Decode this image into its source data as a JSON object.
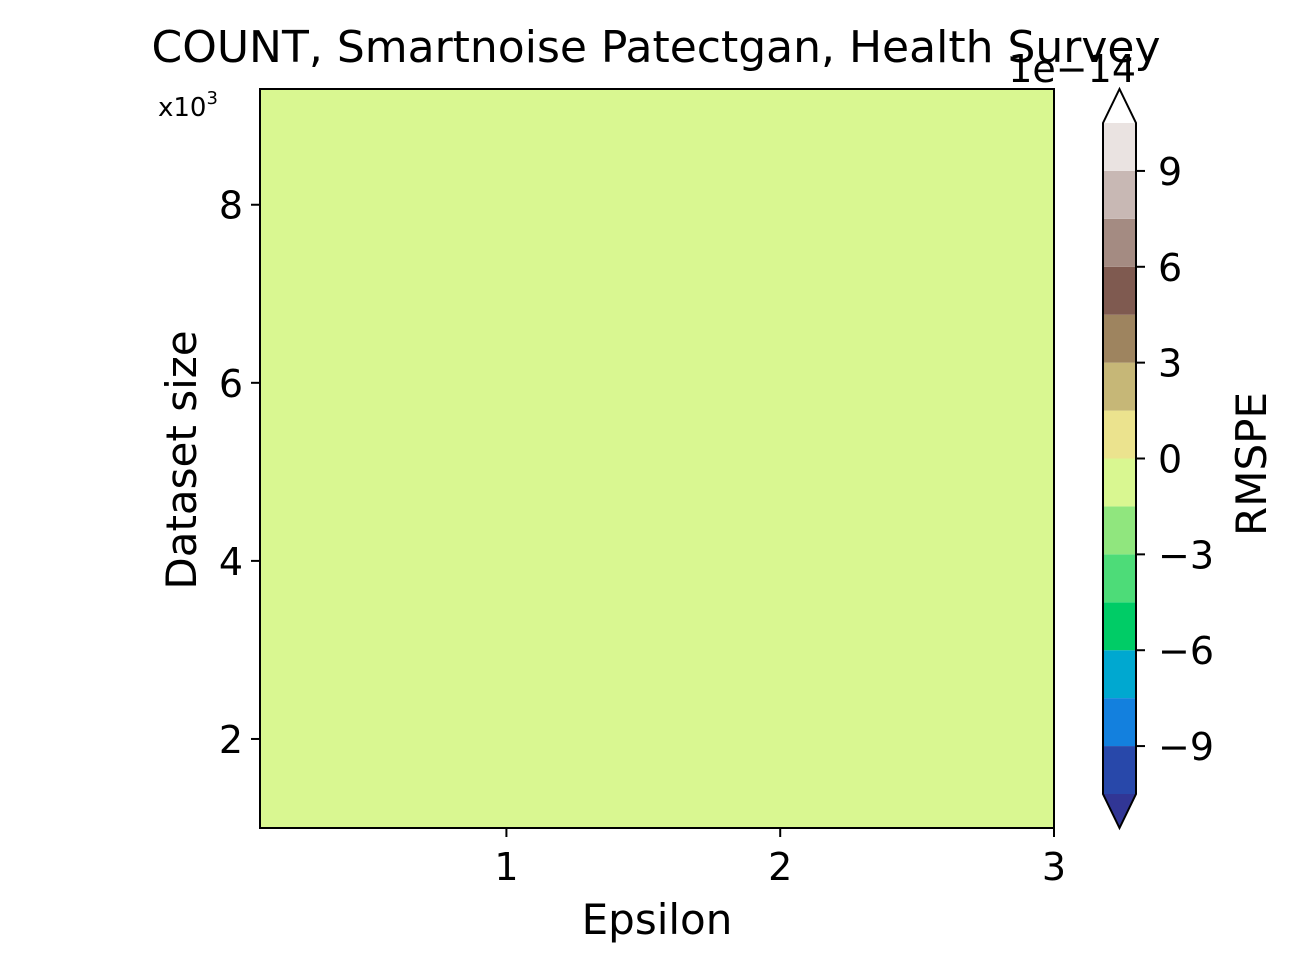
{
  "chart_data": {
    "type": "heatmap",
    "title": "COUNT, Smartnoise Patectgan, Health Survey",
    "xlabel": "Epsilon",
    "ylabel": "Dataset size",
    "y_multiplier_label": "x10",
    "y_multiplier_exponent": "3",
    "xlim": [
      0.1,
      3.0
    ],
    "ylim": [
      1.0,
      9.3
    ],
    "x_ticks": [
      1,
      2,
      3
    ],
    "x_tick_labels": [
      "1",
      "2",
      "3"
    ],
    "y_ticks": [
      2,
      4,
      6,
      8
    ],
    "y_tick_labels": [
      "2",
      "4",
      "6",
      "8"
    ],
    "field_value": 0,
    "field_color": "#d9f791",
    "colorbar": {
      "label": "RMSPE",
      "offset_label": "1e−14",
      "extend": "both",
      "levels": [
        -10.5,
        -9,
        -7.5,
        -6,
        -4.5,
        -3,
        -1.5,
        0,
        1.5,
        3,
        4.5,
        6,
        7.5,
        9,
        10.5
      ],
      "colors": [
        "#2848aa",
        "#1380de",
        "#00a8d0",
        "#00cc66",
        "#4ddc78",
        "#90e67e",
        "#d9f791",
        "#ebe38e",
        "#c6b777",
        "#9e845f",
        "#7f5a50",
        "#a48b82",
        "#c8b8b4",
        "#eae3e1"
      ],
      "under_color": "#313695",
      "over_color": "#ffffff",
      "ticks": [
        -9,
        -6,
        -3,
        0,
        3,
        6,
        9
      ],
      "tick_labels": [
        "−9",
        "−6",
        "−3",
        "0",
        "3",
        "6",
        "9"
      ]
    }
  }
}
